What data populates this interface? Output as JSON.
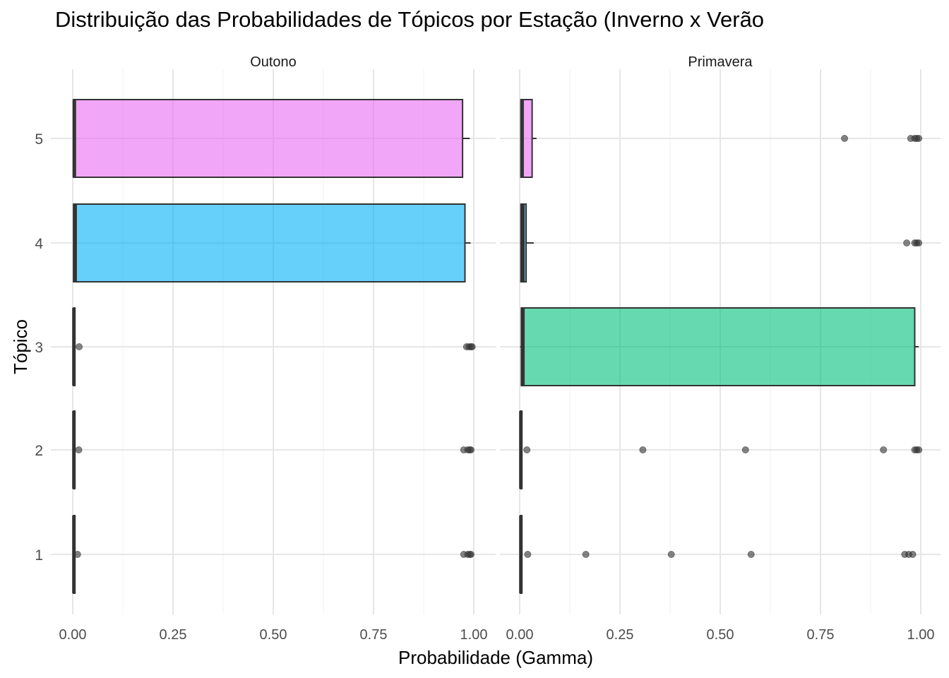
{
  "chart_data": {
    "type": "boxplot",
    "orientation": "horizontal",
    "title": "Distribuição das Probabilidades de Tópicos por Estação (Inverno x Verão",
    "xlabel": "Probabilidade (Gamma)",
    "ylabel": "Tópico",
    "xlim": [
      0,
      1
    ],
    "x_ticks": [
      "0.00",
      "0.25",
      "0.50",
      "0.75",
      "1.00"
    ],
    "categories": [
      "1",
      "2",
      "3",
      "4",
      "5"
    ],
    "grid": true,
    "topic_colors": {
      "1": "#F8766D",
      "2": "#A3A500",
      "3": "#00BF7D",
      "4": "#00B0F6",
      "5": "#E76BF3"
    },
    "panels": [
      {
        "name": "Outono",
        "boxes": [
          {
            "topic": "1",
            "q1": 0.002,
            "median": 0.003,
            "q3": 0.005,
            "whisker_low": 0.001,
            "whisker_high": 0.006,
            "outliers": [
              0.012,
              0.975,
              0.985,
              0.99,
              0.993
            ]
          },
          {
            "topic": "2",
            "q1": 0.002,
            "median": 0.003,
            "q3": 0.005,
            "whisker_low": 0.001,
            "whisker_high": 0.006,
            "outliers": [
              0.015,
              0.975,
              0.985,
              0.99,
              0.993
            ]
          },
          {
            "topic": "3",
            "q1": 0.002,
            "median": 0.003,
            "q3": 0.005,
            "whisker_low": 0.001,
            "whisker_high": 0.006,
            "outliers": [
              0.016,
              0.982,
              0.988,
              0.993,
              0.996
            ]
          },
          {
            "topic": "4",
            "q1": 0.002,
            "median": 0.006,
            "q3": 0.978,
            "whisker_low": 0.001,
            "whisker_high": 0.992,
            "outliers": []
          },
          {
            "topic": "5",
            "q1": 0.002,
            "median": 0.004,
            "q3": 0.972,
            "whisker_low": 0.001,
            "whisker_high": 0.99,
            "outliers": []
          }
        ]
      },
      {
        "name": "Primavera",
        "boxes": [
          {
            "topic": "1",
            "q1": 0.002,
            "median": 0.003,
            "q3": 0.005,
            "whisker_low": 0.001,
            "whisker_high": 0.006,
            "outliers": [
              0.02,
              0.165,
              0.378,
              0.577,
              0.96,
              0.97,
              0.98
            ]
          },
          {
            "topic": "2",
            "q1": 0.002,
            "median": 0.003,
            "q3": 0.005,
            "whisker_low": 0.001,
            "whisker_high": 0.006,
            "outliers": [
              0.018,
              0.307,
              0.563,
              0.907,
              0.985,
              0.99,
              0.995
            ]
          },
          {
            "topic": "3",
            "q1": 0.004,
            "median": 0.008,
            "q3": 0.985,
            "whisker_low": 0.001,
            "whisker_high": 0.995,
            "outliers": []
          },
          {
            "topic": "4",
            "q1": 0.003,
            "median": 0.008,
            "q3": 0.016,
            "whisker_low": 0.001,
            "whisker_high": 0.035,
            "outliers": [
              0.965,
              0.985,
              0.99,
              0.995
            ]
          },
          {
            "topic": "5",
            "q1": 0.003,
            "median": 0.006,
            "q3": 0.031,
            "whisker_low": 0.001,
            "whisker_high": 0.042,
            "outliers": [
              0.81,
              0.975,
              0.985,
              0.99,
              0.995
            ]
          }
        ]
      }
    ]
  }
}
